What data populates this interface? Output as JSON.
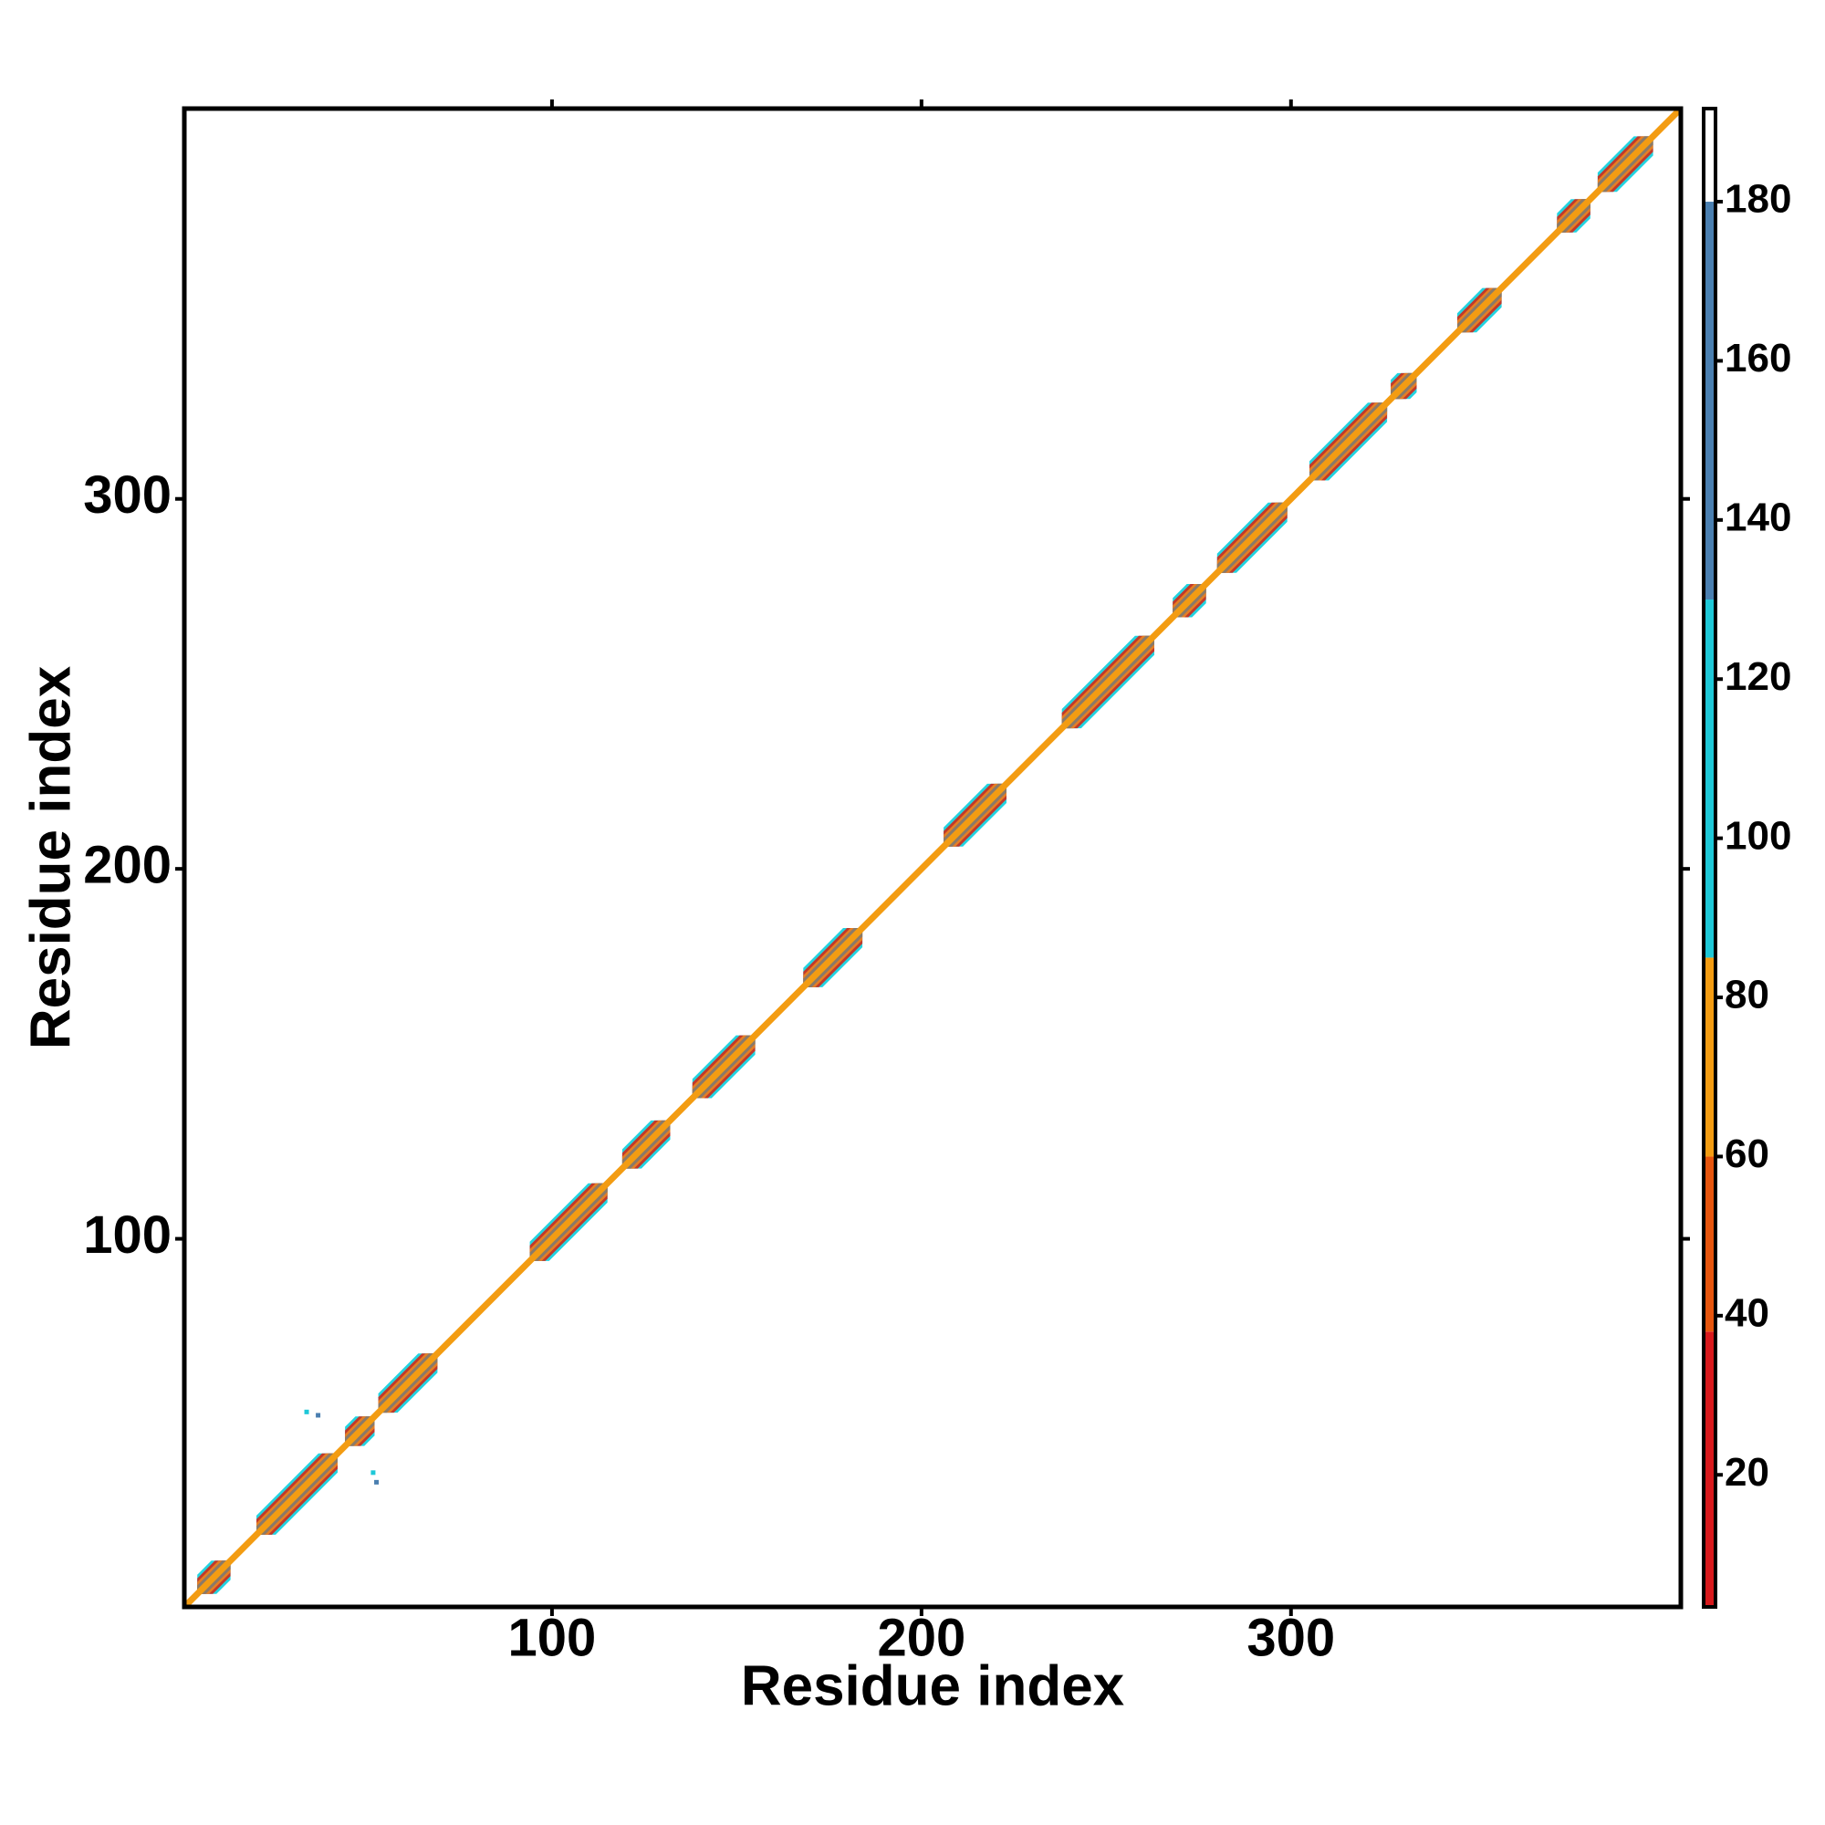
{
  "chart_data": {
    "type": "contact_map",
    "x_label": "Residue index",
    "y_label": "Residue index",
    "xlim": [
      0.5,
      405.5
    ],
    "ylim": [
      0.5,
      405.5
    ],
    "xticks": [
      100,
      200,
      300
    ],
    "yticks": [
      100,
      200,
      300
    ],
    "diagonal_color": "#f39c12",
    "helices": [
      {
        "start": 4,
        "end": 13
      },
      {
        "start": 20,
        "end": 42
      },
      {
        "start": 44,
        "end": 52
      },
      {
        "start": 53,
        "end": 69
      },
      {
        "start": 94,
        "end": 115
      },
      {
        "start": 119,
        "end": 132
      },
      {
        "start": 138,
        "end": 155
      },
      {
        "start": 168,
        "end": 184
      },
      {
        "start": 206,
        "end": 223
      },
      {
        "start": 238,
        "end": 263
      },
      {
        "start": 268,
        "end": 277
      },
      {
        "start": 280,
        "end": 299
      },
      {
        "start": 305,
        "end": 326
      },
      {
        "start": 327,
        "end": 334
      },
      {
        "start": 345,
        "end": 357
      },
      {
        "start": 372,
        "end": 381
      },
      {
        "start": 383,
        "end": 398
      }
    ],
    "points": [
      {
        "x": 33.6,
        "y": 53.2,
        "value": 110
      },
      {
        "x": 36.7,
        "y": 52.3,
        "value": 140
      },
      {
        "x": 51.6,
        "y": 36.8,
        "value": 110
      },
      {
        "x": 52.5,
        "y": 34.2,
        "value": 140
      }
    ],
    "colorbar": {
      "lim": [
        3.4,
        191.7
      ],
      "ticks": [
        20,
        40,
        60,
        80,
        100,
        120,
        140,
        160,
        180
      ],
      "segments": [
        {
          "from": 3.4,
          "to": 38,
          "color": "#d7191c"
        },
        {
          "from": 38,
          "to": 60,
          "color": "#e6550d"
        },
        {
          "from": 60,
          "to": 85,
          "color": "#f39c12"
        },
        {
          "from": 85,
          "to": 130,
          "color": "#1ec8d8"
        },
        {
          "from": 130,
          "to": 180,
          "color": "#4a7fb0"
        },
        {
          "from": 180,
          "to": 191.7,
          "color": "#ffffff"
        }
      ]
    }
  }
}
